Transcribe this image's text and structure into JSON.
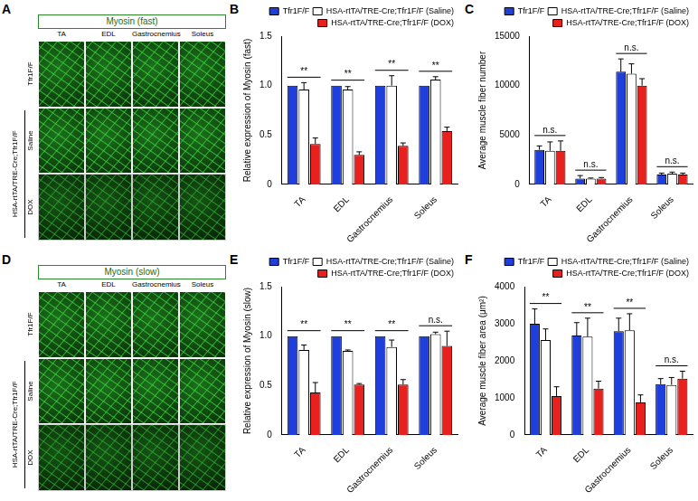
{
  "image_panels": [
    {
      "panel": "A",
      "title": "Myosin (fast)",
      "columns": [
        "TA",
        "EDL",
        "Gastrocnemius",
        "Soleus"
      ],
      "rows": [
        "Tfr1F/F",
        "Saline",
        "DOX"
      ],
      "group_label": "HSA-rtTA/TRE-Cre;Tfr1F/F"
    },
    {
      "panel": "D",
      "title": "Myosin (slow)",
      "columns": [
        "TA",
        "EDL",
        "Gastrocnemius",
        "Soleus"
      ],
      "rows": [
        "Tfr1F/F",
        "Saline",
        "DOX"
      ],
      "group_label": "HSA-rtTA/TRE-Cre;Tfr1F/F"
    }
  ],
  "chart_data": [
    {
      "panel": "B",
      "type": "bar",
      "y_label": "Relative expression of Myosin (fast)",
      "categories": [
        "TA",
        "EDL",
        "Gastrocnemius",
        "Soleus"
      ],
      "series": [
        {
          "name": "Tfr1F/F",
          "color": "#1f3fdc",
          "values": [
            1,
            1,
            1,
            1
          ],
          "errors": [
            0,
            0,
            0,
            0
          ]
        },
        {
          "name": "HSA-rtTA/TRE-Cre;Tfr1F/F (Saline)",
          "color": "#ffffff",
          "values": [
            0.96,
            0.96,
            1.0,
            1.06
          ],
          "errors": [
            0.07,
            0.03,
            0.1,
            0.03
          ]
        },
        {
          "name": "HSA-rtTA/TRE-Cre;Tfr1F/F (DOX)",
          "color": "#e8201e",
          "values": [
            0.41,
            0.3,
            0.39,
            0.54
          ],
          "errors": [
            0.06,
            0.03,
            0.03,
            0.04
          ]
        }
      ],
      "annotations": [
        {
          "category": "TA",
          "label": "**"
        },
        {
          "category": "EDL",
          "label": "**"
        },
        {
          "category": "Gastrocnemius",
          "label": "**"
        },
        {
          "category": "Soleus",
          "label": "**"
        }
      ],
      "ylim": [
        0,
        1.5
      ],
      "yticks": [
        0,
        0.5,
        {
          "value": 1,
          "label": "1.0"
        },
        1.5
      ],
      "grid": false,
      "legend": "top"
    },
    {
      "panel": "C",
      "type": "bar",
      "y_label": "Average muscle fiber number",
      "categories": [
        "TA",
        "EDL",
        "Gastrocnemius",
        "Soleus"
      ],
      "series": [
        {
          "name": "Tfr1F/F",
          "color": "#1f3fdc",
          "values": [
            3500,
            600,
            11400,
            1000
          ],
          "errors": [
            400,
            300,
            1300,
            150
          ]
        },
        {
          "name": "HSA-rtTA/TRE-Cre;Tfr1F/F (Saline)",
          "color": "#ffffff",
          "values": [
            3400,
            600,
            11200,
            1100
          ],
          "errors": [
            900,
            50,
            1000,
            150
          ]
        },
        {
          "name": "HSA-rtTA/TRE-Cre;Tfr1F/F (DOX)",
          "color": "#e8201e",
          "values": [
            3400,
            600,
            10000,
            1000
          ],
          "errors": [
            1000,
            100,
            700,
            150
          ]
        }
      ],
      "annotations": [
        {
          "category": "TA",
          "label": "n.s."
        },
        {
          "category": "EDL",
          "label": "n.s."
        },
        {
          "category": "Gastrocnemius",
          "label": "n.s."
        },
        {
          "category": "Soleus",
          "label": "n.s."
        }
      ],
      "ylim": [
        0,
        15000
      ],
      "yticks": [
        0,
        5000,
        10000,
        15000
      ],
      "grid": false,
      "legend": "top"
    },
    {
      "panel": "E",
      "type": "bar",
      "y_label": "Relative expression of Myosin (slow)",
      "categories": [
        "TA",
        "EDL",
        "Gastrocnemius",
        "Soleus"
      ],
      "series": [
        {
          "name": "Tfr1F/F",
          "color": "#1f3fdc",
          "values": [
            1,
            1,
            1,
            1
          ],
          "errors": [
            0,
            0,
            0,
            0
          ]
        },
        {
          "name": "HSA-rtTA/TRE-Cre;Tfr1F/F (Saline)",
          "color": "#ffffff",
          "values": [
            0.86,
            0.85,
            0.89,
            1.02
          ],
          "errors": [
            0.05,
            0.01,
            0.07,
            0.02
          ]
        },
        {
          "name": "HSA-rtTA/TRE-Cre;Tfr1F/F (DOX)",
          "color": "#e8201e",
          "values": [
            0.43,
            0.51,
            0.51,
            0.9
          ],
          "errors": [
            0.1,
            0.01,
            0.05,
            0.15
          ]
        }
      ],
      "annotations": [
        {
          "category": "TA",
          "label": "**"
        },
        {
          "category": "EDL",
          "label": "**"
        },
        {
          "category": "Gastrocnemius",
          "label": "**"
        },
        {
          "category": "Soleus",
          "label": "n.s."
        }
      ],
      "ylim": [
        0,
        1.5
      ],
      "yticks": [
        0,
        0.5,
        {
          "value": 1,
          "label": "1.0"
        },
        1.5
      ],
      "grid": false,
      "legend": "top"
    },
    {
      "panel": "F",
      "type": "bar",
      "y_label": "Average muscle fiber area (μm²)",
      "categories": [
        "TA",
        "EDL",
        "Gastrocnemius",
        "Soleus"
      ],
      "series": [
        {
          "name": "Tfr1F/F",
          "color": "#1f3fdc",
          "values": [
            3000,
            2680,
            2800,
            1370
          ],
          "errors": [
            400,
            350,
            350,
            150
          ]
        },
        {
          "name": "HSA-rtTA/TRE-Cre;Tfr1F/F (Saline)",
          "color": "#ffffff",
          "values": [
            2560,
            2650,
            2820,
            1350
          ],
          "errors": [
            300,
            500,
            450,
            200
          ]
        },
        {
          "name": "HSA-rtTA/TRE-Cre;Tfr1F/F (DOX)",
          "color": "#e8201e",
          "values": [
            1050,
            1250,
            880,
            1520
          ],
          "errors": [
            250,
            200,
            200,
            200
          ]
        }
      ],
      "annotations": [
        {
          "category": "TA",
          "label": "**"
        },
        {
          "category": "EDL",
          "label": "**"
        },
        {
          "category": "Gastrocnemius",
          "label": "**"
        },
        {
          "category": "Soleus",
          "label": "n.s."
        }
      ],
      "ylim": [
        0,
        4000
      ],
      "yticks": [
        0,
        1000,
        2000,
        3000,
        4000
      ],
      "grid": false,
      "legend": "top"
    }
  ]
}
